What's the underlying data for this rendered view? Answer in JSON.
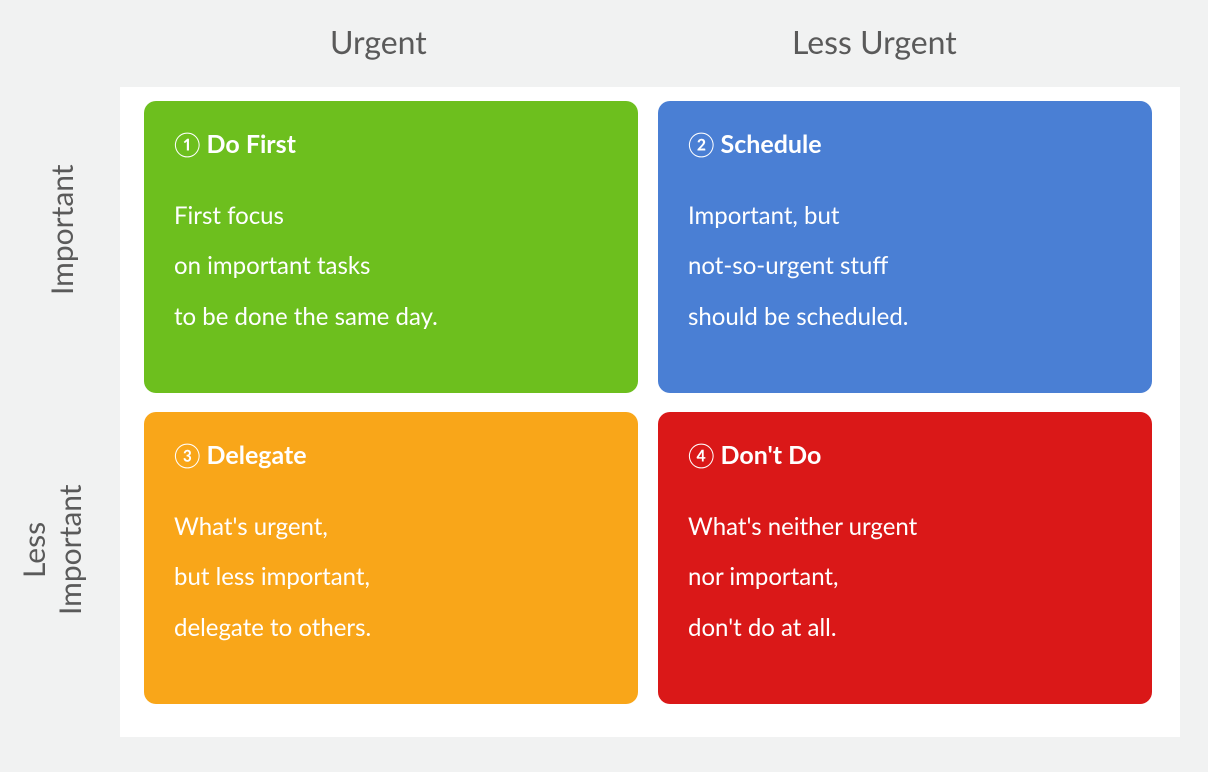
{
  "matrix": {
    "type": "2x2-matrix",
    "background_color": "#f1f2f2",
    "inner_background_color": "#ffffff",
    "label_color": "#5a5a5a",
    "column_headers": {
      "left": "Urgent",
      "right": "Less Urgent"
    },
    "row_labels": {
      "top": "Important",
      "bottom_line1": "Less",
      "bottom_line2": "Important"
    },
    "quadrants": {
      "q1": {
        "number": "①",
        "title": "Do First",
        "description_line1": "First focus",
        "description_line2": "on important tasks",
        "description_line3": "to be done the same day.",
        "color": "#6dbf1e",
        "text_color": "#ffffff",
        "border_radius": 12
      },
      "q2": {
        "number": "②",
        "title": "Schedule",
        "description_line1": "Important, but",
        "description_line2": "not-so-urgent stuff",
        "description_line3": "should be scheduled.",
        "color": "#4a7fd4",
        "text_color": "#ffffff",
        "border_radius": 12
      },
      "q3": {
        "number": "③",
        "title": "Delegate",
        "description_line1": "What's urgent,",
        "description_line2": "but less important,",
        "description_line3": "delegate to others.",
        "color": "#f9a619",
        "text_color": "#ffffff",
        "border_radius": 12
      },
      "q4": {
        "number": "④",
        "title": "Don't Do",
        "description_line1": "What's neither urgent",
        "description_line2": "nor important,",
        "description_line3": "don't do at all.",
        "color": "#da1818",
        "text_color": "#ffffff",
        "border_radius": 12
      }
    },
    "typography": {
      "header_fontsize": 32,
      "row_label_fontsize": 30,
      "title_fontsize": 25,
      "desc_fontsize": 24,
      "font_family": "Lato, Helvetica Neue, Arial, sans-serif"
    }
  }
}
